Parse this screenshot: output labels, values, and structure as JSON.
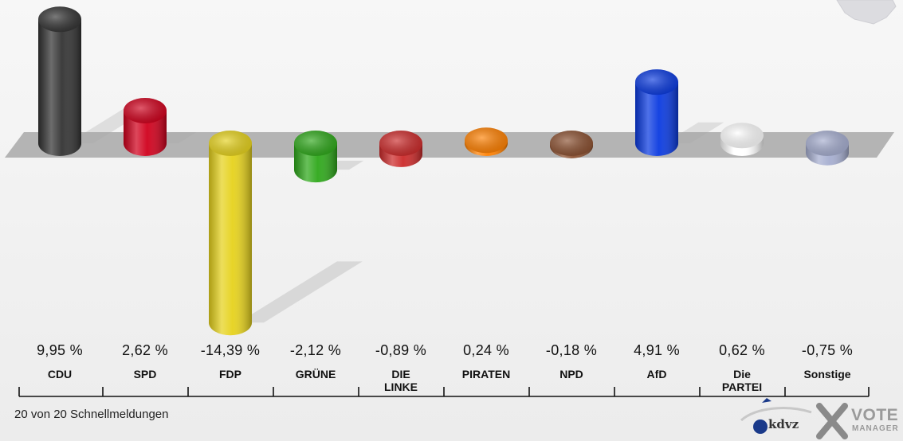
{
  "chart_data": {
    "type": "bar",
    "categories": [
      "CDU",
      "SPD",
      "FDP",
      "GRÜNE",
      "DIE LINKE",
      "PIRATEN",
      "NPD",
      "AfD",
      "Die PARTEI",
      "Sonstige"
    ],
    "category_lines": [
      [
        "CDU"
      ],
      [
        "SPD"
      ],
      [
        "FDP"
      ],
      [
        "GRÜNE"
      ],
      [
        "DIE",
        "LINKE"
      ],
      [
        "PIRATEN"
      ],
      [
        "NPD"
      ],
      [
        "AfD"
      ],
      [
        "Die",
        "PARTEI"
      ],
      [
        "Sonstige"
      ]
    ],
    "values": [
      9.95,
      2.62,
      -14.39,
      -2.12,
      -0.89,
      0.24,
      -0.18,
      4.91,
      0.62,
      -0.75
    ],
    "value_labels": [
      "9,95 %",
      "2,62 %",
      "-14,39 %",
      "-2,12 %",
      "-0,89 %",
      "0,24 %",
      "-0,18 %",
      "4,91 %",
      "0,62 %",
      "-0,75 %"
    ],
    "colors": [
      "#333333",
      "#d0001c",
      "#e6d21c",
      "#2ea81a",
      "#cc2a2a",
      "#ff8000",
      "#8b5030",
      "#0a3ae0",
      "#ffffff",
      "#a6aed0"
    ],
    "ylim": [
      -15,
      10.5
    ],
    "grid": false,
    "legend": "none"
  },
  "footer": {
    "note": "20 von 20 Schnellmeldungen"
  },
  "logo": {
    "kdvz": "kdvz",
    "vote": "VOTE",
    "manager": "MANAGER"
  }
}
